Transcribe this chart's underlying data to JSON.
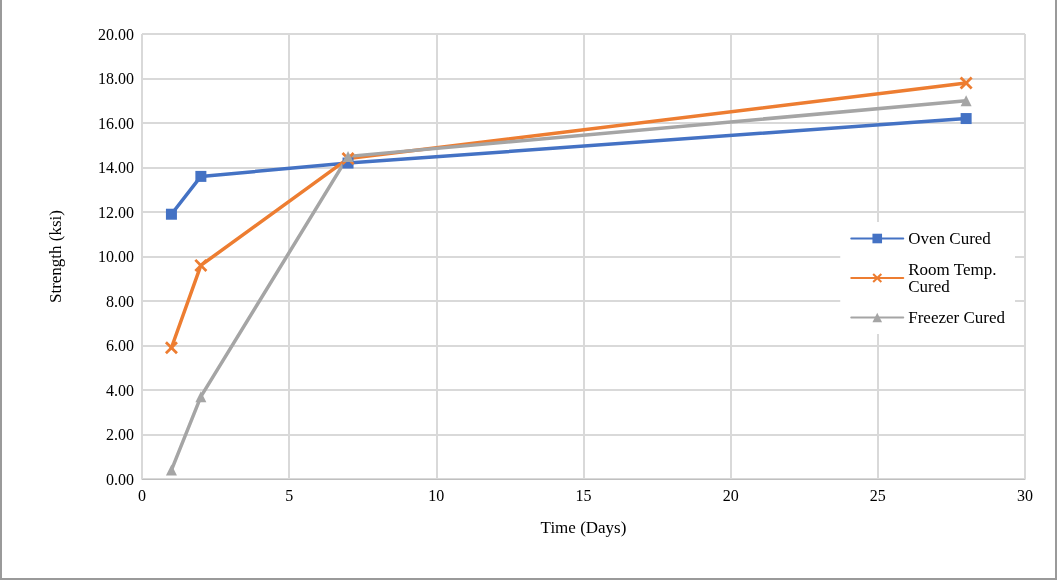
{
  "chart_data": {
    "type": "line",
    "xlabel": "Time (Days)",
    "ylabel": "Strength (ksi)",
    "xlim": [
      0,
      30
    ],
    "xticks": [
      0,
      5,
      10,
      15,
      20,
      25,
      30
    ],
    "ylim": [
      0,
      20
    ],
    "yticks": [
      {
        "value": 0,
        "label": "0.00"
      },
      {
        "value": 2,
        "label": "2.00"
      },
      {
        "value": 4,
        "label": "4.00"
      },
      {
        "value": 6,
        "label": "6.00"
      },
      {
        "value": 8,
        "label": "8.00"
      },
      {
        "value": 10,
        "label": "10.00"
      },
      {
        "value": 12,
        "label": "12.00"
      },
      {
        "value": 14,
        "label": "14.00"
      },
      {
        "value": 16,
        "label": "16.00"
      },
      {
        "value": 18,
        "label": "18.00"
      },
      {
        "value": 20,
        "label": "20.00"
      }
    ],
    "grid": true,
    "legend": "right",
    "line_style": "solid",
    "x": [
      1,
      2,
      7,
      28
    ],
    "series": [
      {
        "name": "Oven Cured",
        "color": "#4472c4",
        "marker": "square",
        "values": [
          11.9,
          13.6,
          14.2,
          16.2
        ]
      },
      {
        "name": "Room Temp. Cured",
        "color": "#ed7d31",
        "marker": "cross",
        "values": [
          5.9,
          9.6,
          14.4,
          17.8
        ]
      },
      {
        "name": "Freezer Cured",
        "color": "#a5a5a5",
        "marker": "triangle",
        "values": [
          0.4,
          3.7,
          14.5,
          17.0
        ]
      }
    ]
  }
}
